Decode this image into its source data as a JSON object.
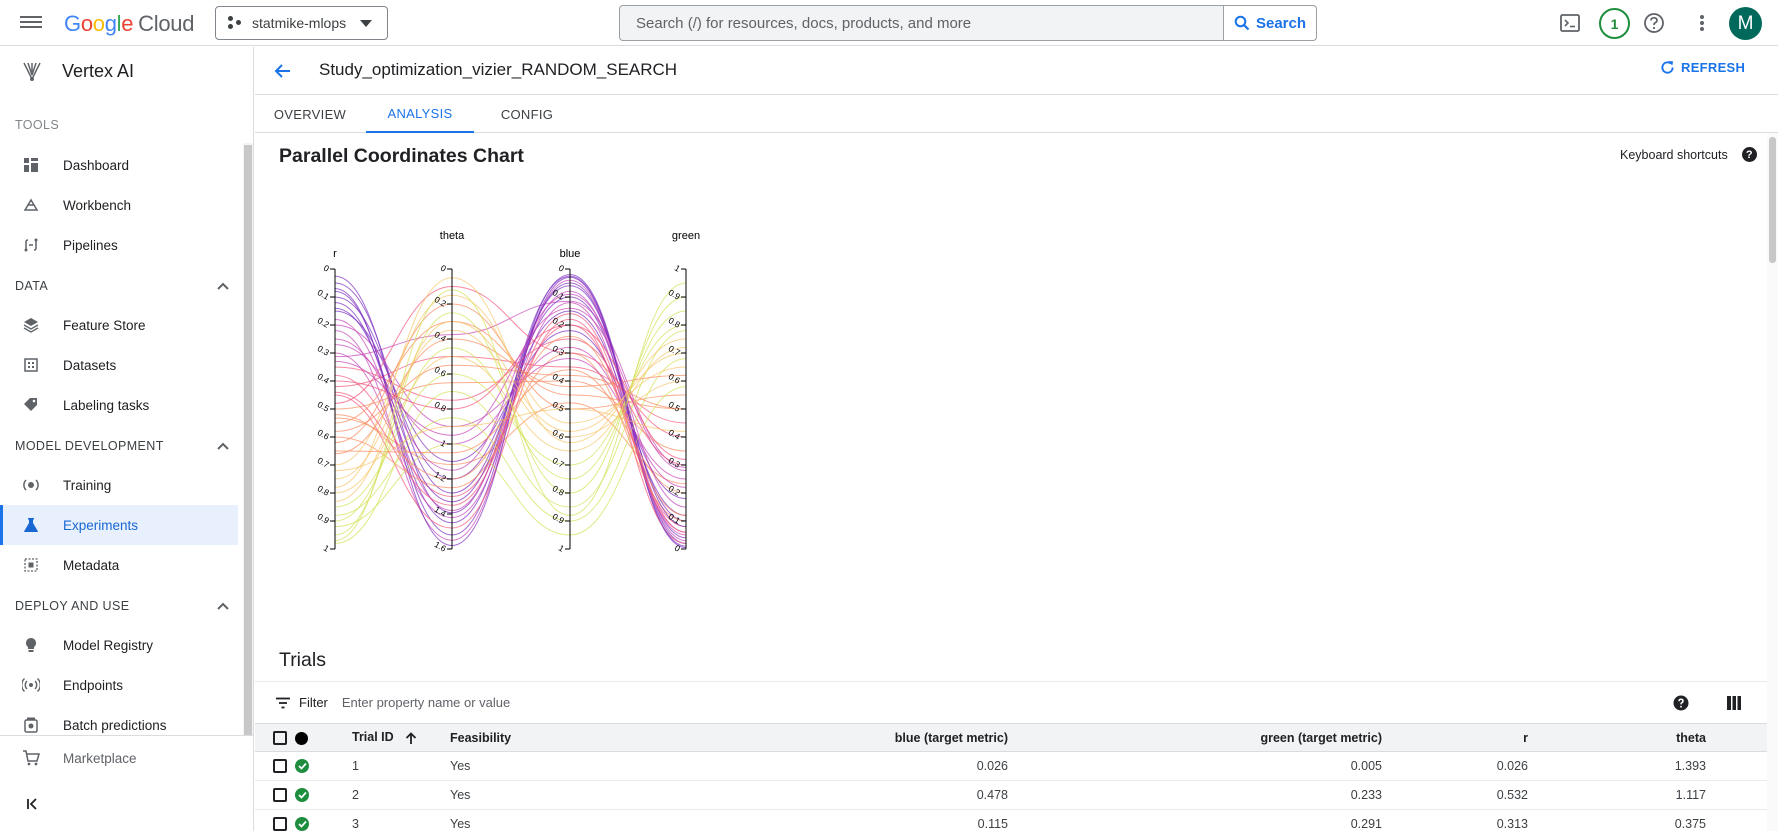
{
  "topbar": {
    "logo_letters": [
      "G",
      "o",
      "o",
      "g",
      "l",
      "e"
    ],
    "logo_suffix": "Cloud",
    "project": "statmike-mlops",
    "search_placeholder": "Search (/) for resources, docs, products, and more",
    "search_label": "Search",
    "notification_count": "1",
    "avatar_initial": "M"
  },
  "sidebar": {
    "product": "Vertex AI",
    "tools_label": "TOOLS",
    "tools": [
      {
        "label": "Dashboard",
        "icon": "dashboard-icon"
      },
      {
        "label": "Workbench",
        "icon": "workbench-icon"
      },
      {
        "label": "Pipelines",
        "icon": "pipelines-icon"
      }
    ],
    "data_label": "DATA",
    "data_items": [
      {
        "label": "Feature Store",
        "icon": "feature-store-icon"
      },
      {
        "label": "Datasets",
        "icon": "datasets-icon"
      },
      {
        "label": "Labeling tasks",
        "icon": "label-icon"
      }
    ],
    "model_dev_label": "MODEL DEVELOPMENT",
    "model_dev_items": [
      {
        "label": "Training",
        "icon": "training-icon"
      },
      {
        "label": "Experiments",
        "icon": "flask-icon"
      },
      {
        "label": "Metadata",
        "icon": "metadata-icon"
      }
    ],
    "deploy_label": "DEPLOY AND USE",
    "deploy_items": [
      {
        "label": "Model Registry",
        "icon": "lightbulb-icon"
      },
      {
        "label": "Endpoints",
        "icon": "endpoints-icon"
      },
      {
        "label": "Batch predictions",
        "icon": "batch-icon"
      }
    ],
    "marketplace": "Marketplace"
  },
  "page": {
    "title": "Study_optimization_vizier_RANDOM_SEARCH",
    "refresh": "REFRESH",
    "tabs": [
      "OVERVIEW",
      "ANALYSIS",
      "CONFIG"
    ],
    "active_tab": "ANALYSIS"
  },
  "analysis": {
    "chart_title": "Parallel Coordinates Chart",
    "keyboard_shortcuts": "Keyboard shortcuts",
    "help_glyph": "?"
  },
  "chart_data": {
    "type": "parallel-coordinates",
    "axes": [
      {
        "name": "r",
        "range": [
          0,
          1
        ],
        "ticks": [
          "0",
          "0.1",
          "0.2",
          "0.3",
          "0.4",
          "0.5",
          "0.6",
          "0.7",
          "0.8",
          "0.9",
          "1"
        ]
      },
      {
        "name": "theta",
        "range": [
          0,
          1.6
        ],
        "ticks": [
          "0",
          "0.2",
          "0.4",
          "0.6",
          "0.8",
          "1",
          "1.2",
          "1.4",
          "1.6"
        ]
      },
      {
        "name": "blue",
        "range": [
          0,
          1
        ],
        "ticks": [
          "0",
          "0.1",
          "0.2",
          "0.3",
          "0.4",
          "0.5",
          "0.6",
          "0.7",
          "0.8",
          "0.9",
          "1"
        ]
      },
      {
        "name": "green",
        "range": [
          0,
          1
        ],
        "inverted": true,
        "ticks": [
          "1",
          "0.9",
          "0.8",
          "0.7",
          "0.6",
          "0.5",
          "0.4",
          "0.3",
          "0.2",
          "0.1",
          "0"
        ]
      }
    ],
    "color_scale": [
      "#7b2cbf",
      "#c644b8",
      "#f2547a",
      "#f98c5e",
      "#f7c66b",
      "#d4e157"
    ],
    "trials": [
      {
        "id": 1,
        "r": 0.026,
        "theta": 1.393,
        "blue": 0.026,
        "green": 0.005
      },
      {
        "id": 2,
        "r": 0.532,
        "theta": 1.117,
        "blue": 0.478,
        "green": 0.233
      },
      {
        "id": 3,
        "r": 0.313,
        "theta": 0.375,
        "blue": 0.115,
        "green": 0.291
      },
      {
        "id": 4,
        "r": 0.08,
        "theta": 1.52,
        "blue": 0.02,
        "green": 0.02
      },
      {
        "id": 5,
        "r": 0.12,
        "theta": 1.45,
        "blue": 0.05,
        "green": 0.04
      },
      {
        "id": 6,
        "r": 0.18,
        "theta": 1.38,
        "blue": 0.08,
        "green": 0.06
      },
      {
        "id": 7,
        "r": 0.05,
        "theta": 1.28,
        "blue": 0.1,
        "green": 0.1
      },
      {
        "id": 8,
        "r": 0.22,
        "theta": 1.55,
        "blue": 0.04,
        "green": 0.03
      },
      {
        "id": 9,
        "r": 0.3,
        "theta": 1.42,
        "blue": 0.12,
        "green": 0.05
      },
      {
        "id": 10,
        "r": 0.1,
        "theta": 1.2,
        "blue": 0.15,
        "green": 0.12
      },
      {
        "id": 11,
        "r": 0.38,
        "theta": 1.3,
        "blue": 0.2,
        "green": 0.08
      },
      {
        "id": 12,
        "r": 0.15,
        "theta": 1.1,
        "blue": 0.22,
        "green": 0.18
      },
      {
        "id": 13,
        "r": 0.45,
        "theta": 1.48,
        "blue": 0.18,
        "green": 0.02
      },
      {
        "id": 14,
        "r": 0.27,
        "theta": 1.0,
        "blue": 0.28,
        "green": 0.22
      },
      {
        "id": 15,
        "r": 0.6,
        "theta": 1.25,
        "blue": 0.3,
        "green": 0.1
      },
      {
        "id": 16,
        "r": 0.2,
        "theta": 0.9,
        "blue": 0.32,
        "green": 0.25
      },
      {
        "id": 17,
        "r": 0.35,
        "theta": 0.75,
        "blue": 0.25,
        "green": 0.3
      },
      {
        "id": 18,
        "r": 0.5,
        "theta": 0.65,
        "blue": 0.4,
        "green": 0.35
      },
      {
        "id": 19,
        "r": 0.42,
        "theta": 0.5,
        "blue": 0.35,
        "green": 0.45
      },
      {
        "id": 20,
        "r": 0.55,
        "theta": 0.3,
        "blue": 0.45,
        "green": 0.5
      },
      {
        "id": 21,
        "r": 0.62,
        "theta": 0.2,
        "blue": 0.5,
        "green": 0.55
      },
      {
        "id": 22,
        "r": 0.48,
        "theta": 0.1,
        "blue": 0.3,
        "green": 0.4
      },
      {
        "id": 23,
        "r": 0.7,
        "theta": 0.15,
        "blue": 0.55,
        "green": 0.65
      },
      {
        "id": 24,
        "r": 0.75,
        "theta": 0.35,
        "blue": 0.6,
        "green": 0.6
      },
      {
        "id": 25,
        "r": 0.8,
        "theta": 0.5,
        "blue": 0.65,
        "green": 0.72
      },
      {
        "id": 26,
        "r": 0.85,
        "theta": 0.6,
        "blue": 0.7,
        "green": 0.8
      },
      {
        "id": 27,
        "r": 0.9,
        "theta": 0.45,
        "blue": 0.75,
        "green": 0.85
      },
      {
        "id": 28,
        "r": 0.95,
        "theta": 0.25,
        "blue": 0.8,
        "green": 0.9
      },
      {
        "id": 29,
        "r": 0.98,
        "theta": 0.7,
        "blue": 0.85,
        "green": 0.78
      },
      {
        "id": 30,
        "r": 0.88,
        "theta": 0.85,
        "blue": 0.9,
        "green": 0.68
      },
      {
        "id": 31,
        "r": 0.92,
        "theta": 1.0,
        "blue": 0.95,
        "green": 0.58
      },
      {
        "id": 32,
        "r": 0.78,
        "theta": 0.05,
        "blue": 0.62,
        "green": 0.75
      },
      {
        "id": 33,
        "r": 0.66,
        "theta": 0.4,
        "blue": 0.42,
        "green": 0.62
      },
      {
        "id": 34,
        "r": 0.58,
        "theta": 0.55,
        "blue": 0.38,
        "green": 0.5
      },
      {
        "id": 35,
        "r": 0.4,
        "theta": 0.8,
        "blue": 0.2,
        "green": 0.32
      },
      {
        "id": 36,
        "r": 0.33,
        "theta": 0.95,
        "blue": 0.14,
        "green": 0.28
      },
      {
        "id": 37,
        "r": 0.25,
        "theta": 1.15,
        "blue": 0.09,
        "green": 0.15
      },
      {
        "id": 38,
        "r": 0.14,
        "theta": 1.33,
        "blue": 0.06,
        "green": 0.08
      },
      {
        "id": 39,
        "r": 0.07,
        "theta": 1.58,
        "blue": 0.03,
        "green": 0.01
      },
      {
        "id": 40,
        "r": 0.72,
        "theta": 0.9,
        "blue": 0.5,
        "green": 0.42
      },
      {
        "id": 41,
        "r": 0.65,
        "theta": 1.05,
        "blue": 0.36,
        "green": 0.2
      },
      {
        "id": 42,
        "r": 0.52,
        "theta": 1.2,
        "blue": 0.24,
        "green": 0.12
      },
      {
        "id": 43,
        "r": 0.44,
        "theta": 1.35,
        "blue": 0.16,
        "green": 0.06
      },
      {
        "id": 44,
        "r": 0.83,
        "theta": 0.3,
        "blue": 0.58,
        "green": 0.7
      },
      {
        "id": 45,
        "r": 0.97,
        "theta": 0.12,
        "blue": 0.88,
        "green": 0.95
      }
    ]
  },
  "trials": {
    "title": "Trials",
    "filter_label": "Filter",
    "filter_placeholder": "Enter property name or value",
    "columns": {
      "trial_id": "Trial ID",
      "feasibility": "Feasibility",
      "blue": "blue (target metric)",
      "green": "green (target metric)",
      "r": "r",
      "theta": "theta"
    },
    "rows": [
      {
        "id": "1",
        "feasibility": "Yes",
        "blue": "0.026",
        "green": "0.005",
        "r": "0.026",
        "theta": "1.393"
      },
      {
        "id": "2",
        "feasibility": "Yes",
        "blue": "0.478",
        "green": "0.233",
        "r": "0.532",
        "theta": "1.117"
      },
      {
        "id": "3",
        "feasibility": "Yes",
        "blue": "0.115",
        "green": "0.291",
        "r": "0.313",
        "theta": "0.375"
      }
    ]
  }
}
